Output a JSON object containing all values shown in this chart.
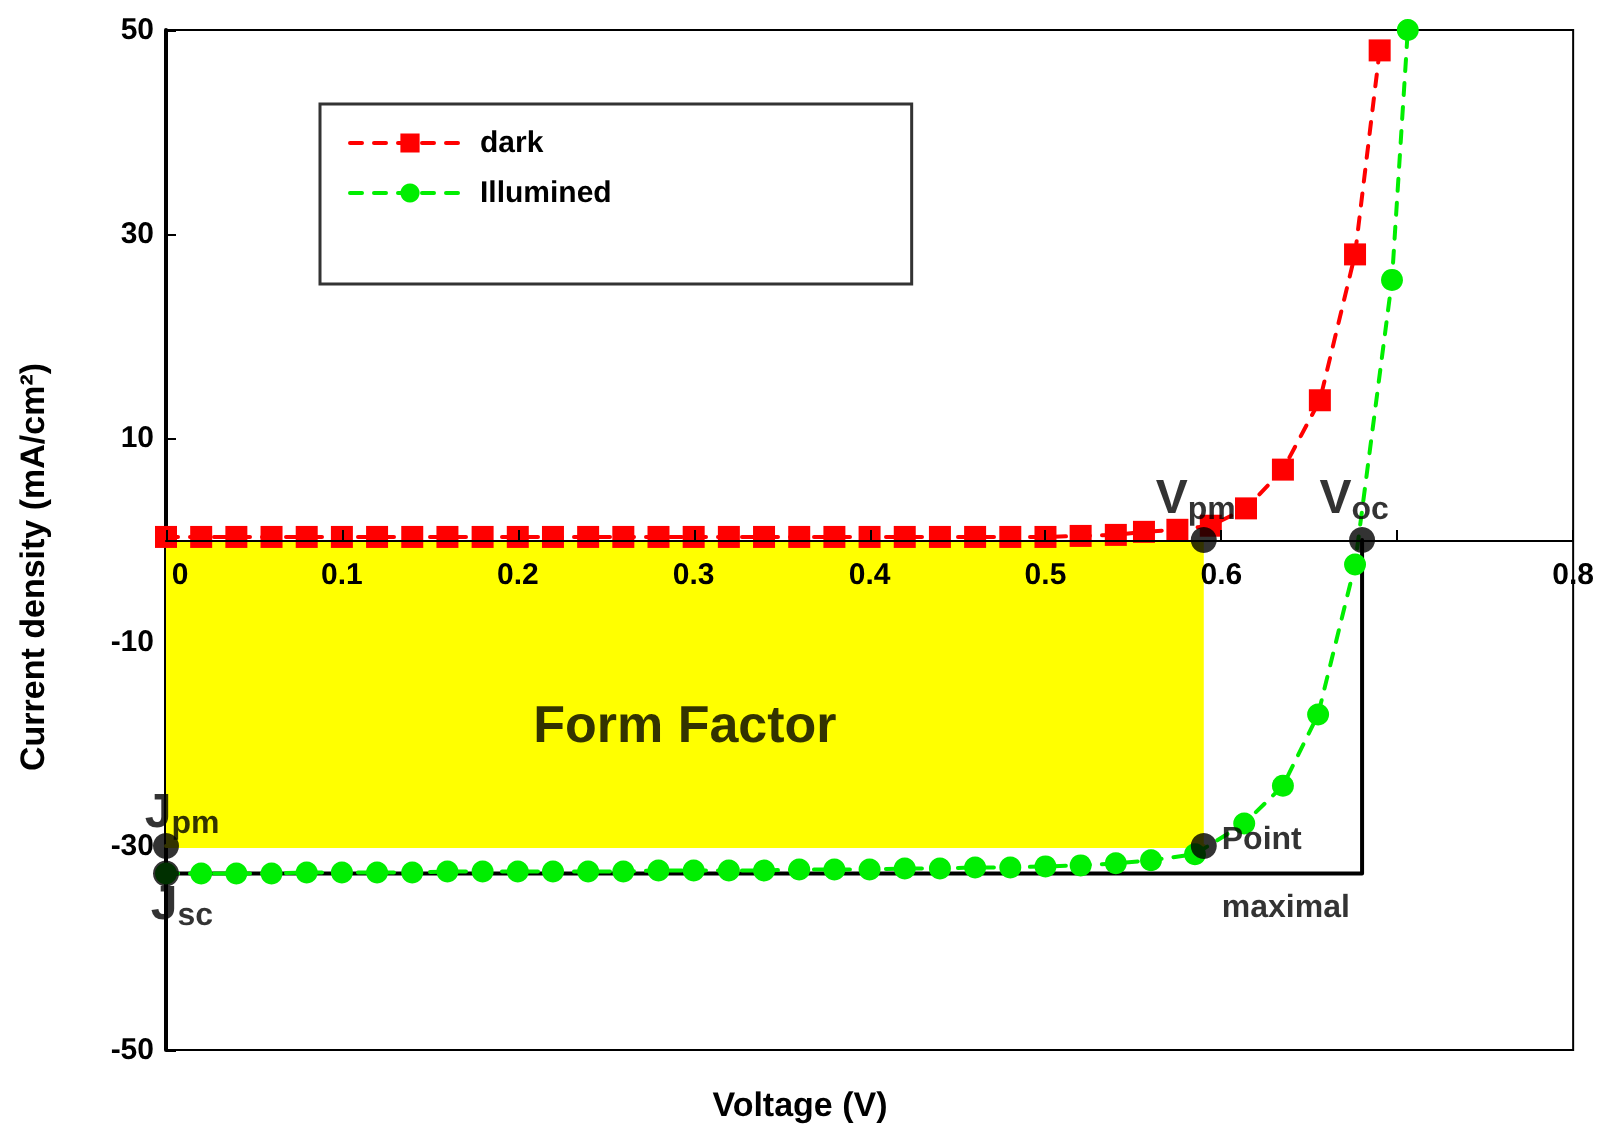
{
  "chart_data": {
    "type": "line",
    "xlabel": "Voltage (V)",
    "ylabel": "Current density (mA/cm²)",
    "xlim": [
      0,
      0.8
    ],
    "ylim": [
      -50,
      50
    ],
    "xticks": [
      0,
      0.1,
      0.2,
      0.3,
      0.4,
      0.5,
      0.6,
      {
        "value": 0.7,
        "label": null
      },
      0.8
    ],
    "yticks": [
      -50,
      -30,
      -10,
      10,
      30,
      50
    ],
    "grid": false,
    "legend": "top left",
    "series": [
      {
        "type": "area",
        "color": "#ffff00",
        "marker": "none",
        "line_style": "solid",
        "x": [
          0,
          0.59
        ],
        "values": [
          -30,
          -30
        ]
      },
      {
        "type": "line",
        "color": "#000000",
        "marker": "none",
        "line_style": "solid",
        "x": [
          0,
          0.68,
          0.68
        ],
        "values": [
          -32.7,
          -32.7,
          0
        ]
      },
      {
        "name": "dark",
        "color": "#ff0000",
        "marker": "square",
        "line_style": "dashed",
        "x": [
          0,
          0.02,
          0.04,
          0.06,
          0.08,
          0.1,
          0.12,
          0.14,
          0.16,
          0.18,
          0.2,
          0.22,
          0.24,
          0.26,
          0.28,
          0.3,
          0.32,
          0.34,
          0.36,
          0.38,
          0.4,
          0.42,
          0.44,
          0.46,
          0.48,
          0.5,
          0.52,
          0.54,
          0.556,
          0.575,
          0.594,
          0.614,
          0.635,
          0.656,
          0.676,
          0.69
        ],
        "values": [
          0.3,
          0.3,
          0.3,
          0.3,
          0.3,
          0.3,
          0.3,
          0.3,
          0.3,
          0.3,
          0.3,
          0.3,
          0.3,
          0.3,
          0.3,
          0.3,
          0.3,
          0.3,
          0.3,
          0.3,
          0.3,
          0.3,
          0.3,
          0.3,
          0.3,
          0.3,
          0.4,
          0.5,
          0.8,
          1,
          1.4,
          3.1,
          6.9,
          13.7,
          28,
          48
        ]
      },
      {
        "name": "Illumined",
        "color": "#00ee00",
        "marker": "circle",
        "line_style": "dashed",
        "x": [
          0,
          0.02,
          0.04,
          0.06,
          0.08,
          0.1,
          0.12,
          0.14,
          0.16,
          0.18,
          0.2,
          0.22,
          0.24,
          0.26,
          0.28,
          0.3,
          0.32,
          0.34,
          0.36,
          0.38,
          0.4,
          0.42,
          0.44,
          0.46,
          0.48,
          0.5,
          0.52,
          0.54,
          0.56,
          0.585,
          0.613,
          0.635,
          0.655,
          0.676,
          0.697,
          0.706
        ],
        "values": [
          -32.7,
          -32.7,
          -32.7,
          -32.7,
          -32.6,
          -32.6,
          -32.6,
          -32.6,
          -32.5,
          -32.5,
          -32.5,
          -32.5,
          -32.5,
          -32.5,
          -32.4,
          -32.4,
          -32.4,
          -32.4,
          -32.3,
          -32.3,
          -32.3,
          -32.2,
          -32.2,
          -32.1,
          -32.1,
          -32,
          -31.9,
          -31.7,
          -31.4,
          -30.8,
          -27.8,
          -24.1,
          -17.1,
          -2.4,
          25.5,
          50
        ]
      },
      {
        "type": "scatter",
        "color": "#000000",
        "marker": "circle",
        "x": [
          0.59,
          0.68,
          0,
          0,
          0.59
        ],
        "values": [
          0,
          0,
          -30,
          -32.7,
          -30
        ]
      }
    ],
    "annotations": [
      "Form Factor",
      {
        "text": "V$_{pm}$",
        "x": 0.59,
        "y": 0
      },
      {
        "text": "V$_{oc}$",
        "x": 0.68,
        "y": 0
      },
      {
        "text": "J$_{pm}$",
        "x": 0,
        "y": -30
      },
      {
        "text": "J$_{sc}$",
        "x": 0,
        "y": -32.7
      },
      {
        "text": "Point maximal",
        "x": 0.59,
        "y": -30
      }
    ]
  }
}
